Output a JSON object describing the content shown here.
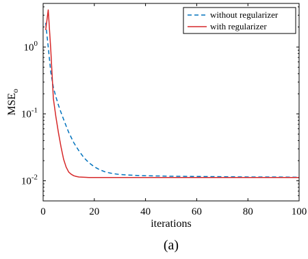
{
  "chart_data": {
    "type": "line",
    "xlabel": "iterations",
    "ylabel": "MSE",
    "ylabel_subscript": "o",
    "caption": "(a)",
    "xlim": [
      0,
      100
    ],
    "ylim": [
      0.005,
      4.5
    ],
    "yscale": "log",
    "xticks": [
      0,
      20,
      40,
      60,
      80,
      100
    ],
    "yticks": [
      {
        "value": 0.01,
        "base": "10",
        "exp": "-2"
      },
      {
        "value": 0.1,
        "base": "10",
        "exp": "-1"
      },
      {
        "value": 1,
        "base": "10",
        "exp": "0"
      }
    ],
    "grid": false,
    "legend_position": "top-right",
    "series": [
      {
        "name": "without regularizer",
        "color": "#0072BD",
        "style": "dashed",
        "x": [
          1,
          2,
          3,
          4,
          5,
          6,
          7,
          8,
          9,
          10,
          12,
          14,
          16,
          18,
          20,
          22,
          24,
          26,
          28,
          30,
          35,
          40,
          45,
          50,
          60,
          70,
          80,
          90,
          100
        ],
        "y": [
          2.3,
          1.0,
          0.42,
          0.25,
          0.18,
          0.135,
          0.105,
          0.083,
          0.066,
          0.053,
          0.037,
          0.028,
          0.022,
          0.0185,
          0.0162,
          0.0147,
          0.0137,
          0.0131,
          0.0127,
          0.0124,
          0.0121,
          0.0119,
          0.0118,
          0.0117,
          0.0116,
          0.0115,
          0.0114,
          0.0114,
          0.0113
        ]
      },
      {
        "name": "with regularizer",
        "color": "#D62728",
        "style": "solid",
        "x": [
          1,
          2,
          3,
          4,
          5,
          6,
          7,
          8,
          9,
          10,
          11,
          12,
          13,
          14,
          16,
          18,
          20,
          25,
          30,
          40,
          50,
          60,
          70,
          80,
          90,
          100
        ],
        "y": [
          1.8,
          3.6,
          0.9,
          0.17,
          0.09,
          0.052,
          0.032,
          0.021,
          0.016,
          0.0135,
          0.0125,
          0.0119,
          0.0116,
          0.0114,
          0.0113,
          0.0112,
          0.0112,
          0.0112,
          0.0112,
          0.0112,
          0.0112,
          0.0112,
          0.0112,
          0.0112,
          0.0112,
          0.0112
        ]
      }
    ]
  }
}
